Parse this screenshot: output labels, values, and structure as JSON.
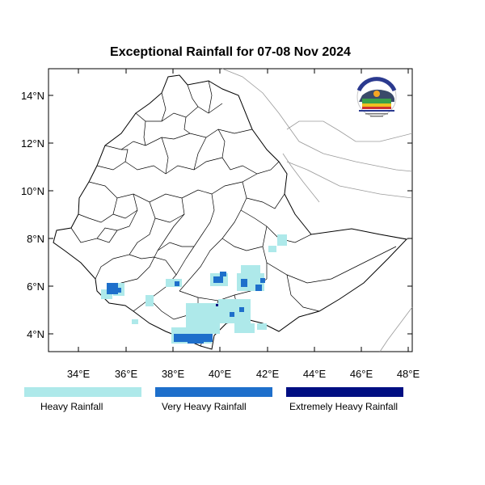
{
  "title": "Exceptional Rainfall for 07-08 Nov 2024",
  "axes": {
    "lat_ticks": [
      "4°N",
      "6°N",
      "8°N",
      "10°N",
      "12°N",
      "14°N"
    ],
    "lon_ticks": [
      "34°E",
      "36°E",
      "38°E",
      "40°E",
      "42°E",
      "44°E",
      "46°E",
      "48°E"
    ],
    "lon_range": [
      32.8,
      48.2
    ],
    "lat_range": [
      3.2,
      15.0
    ]
  },
  "legend": [
    {
      "label": "Heavy Rainfall",
      "color": "#aee9ea"
    },
    {
      "label": "Very Heavy Rainfall",
      "color": "#1e6fcb"
    },
    {
      "label": "Extremely Heavy Rainfall",
      "color": "#000e82"
    }
  ],
  "logo": {
    "text_top": "ETHIOPIAN METEOROLOGY INSTITUTE",
    "text_bottom": "Ethiopian Meteorological Institute"
  }
}
